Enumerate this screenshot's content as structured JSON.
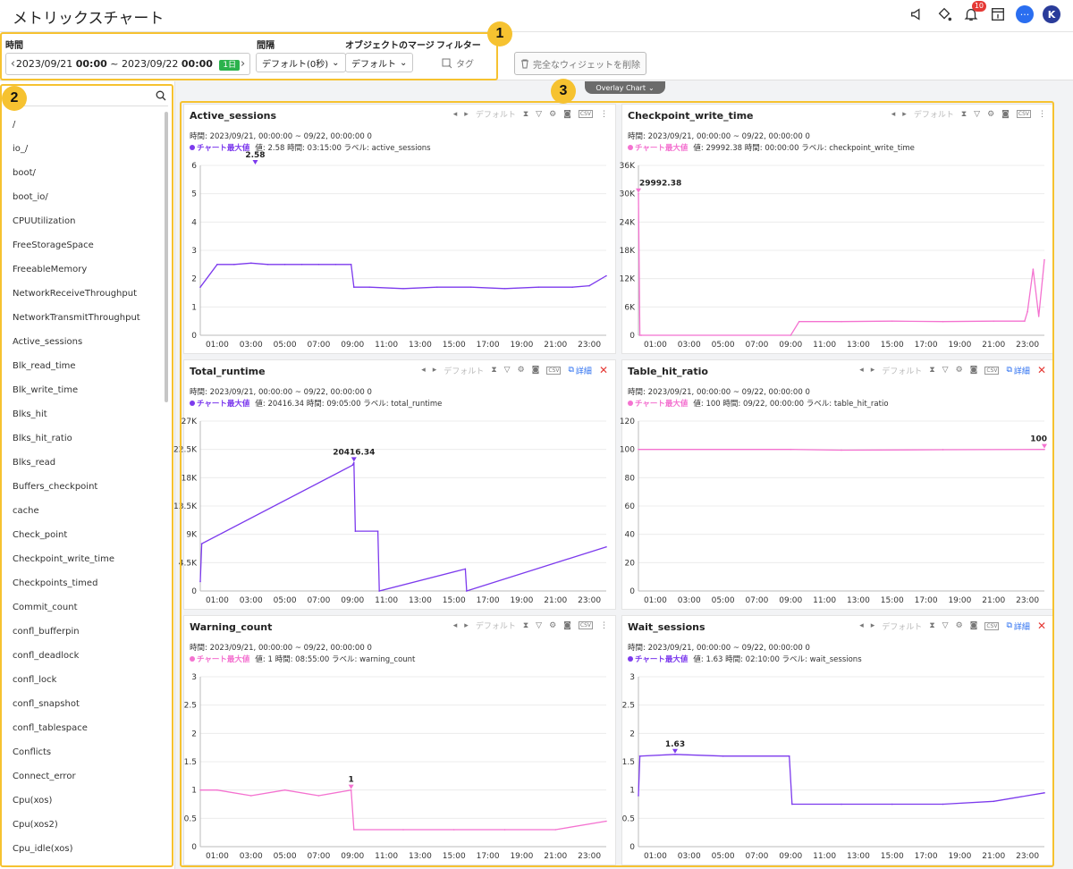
{
  "header": {
    "title": "メトリックスチャート",
    "notification_count": "10",
    "user_initial": "K",
    "chat_glyph": "···"
  },
  "filters": {
    "time_label": "時間",
    "date_from": "2023/09/21",
    "time_from": "00:00",
    "separator": "~",
    "date_to": "2023/09/22",
    "time_to": "00:00",
    "range_badge": "1日",
    "interval_label": "間隔",
    "interval_value": "デフォルト(0秒)",
    "merge_label": "オブジェクトのマージ",
    "merge_value": "デフォルト",
    "filter_label": "フィルター",
    "tag_label": "タグ",
    "delete_label": "完全なウィジェットを削除"
  },
  "callouts": [
    "1",
    "2",
    "3"
  ],
  "sidebar": {
    "items": [
      "/",
      "io_/",
      "boot/",
      "boot_io/",
      "CPUUtilization",
      "FreeStorageSpace",
      "FreeableMemory",
      "NetworkReceiveThroughput",
      "NetworkTransmitThroughput",
      "Active_sessions",
      "Blk_read_time",
      "Blk_write_time",
      "Blks_hit",
      "Blks_hit_ratio",
      "Blks_read",
      "Buffers_checkpoint",
      "cache",
      "Check_point",
      "Checkpoint_write_time",
      "Checkpoints_timed",
      "Commit_count",
      "confl_bufferpin",
      "confl_deadlock",
      "confl_lock",
      "confl_snapshot",
      "confl_tablespace",
      "Conflicts",
      "Connect_error",
      "Cpu(xos)",
      "Cpu(xos2)",
      "Cpu_idle(xos)"
    ]
  },
  "overlay_chart_label": "Overlay Chart",
  "panel_common": {
    "default_label": "デフォルト",
    "detail_label": "詳細",
    "max_label": "チャート最大値",
    "time_range": "時間: 2023/09/21, 00:00:00 ~ 09/22, 00:00:00   0",
    "colors": {
      "purple": "#7c3aed",
      "pink": "#f472d0"
    }
  },
  "panels": [
    {
      "title": "Active_sessions",
      "detail": false,
      "info": "値: 2.58   時間: 03:15:00   ラベル: active_sessions"
    },
    {
      "title": "Checkpoint_write_time",
      "detail": false,
      "info": "値: 29992.38   時間: 00:00:00   ラベル: checkpoint_write_time"
    },
    {
      "title": "Total_runtime",
      "detail": true,
      "info": "値: 20416.34   時間: 09:05:00   ラベル: total_runtime"
    },
    {
      "title": "Table_hit_ratio",
      "detail": true,
      "info": "値: 100   時間: 09/22, 00:00:00   ラベル: table_hit_ratio"
    },
    {
      "title": "Warning_count",
      "detail": false,
      "info": "値: 1   時間: 08:55:00   ラベル: warning_count"
    },
    {
      "title": "Wait_sessions",
      "detail": true,
      "info": "値: 1.63   時間: 02:10:00   ラベル: wait_sessions"
    }
  ],
  "chart_data": [
    {
      "type": "line",
      "title": "Active_sessions",
      "color": "purple",
      "x": [
        "00:00",
        "01:00",
        "02:00",
        "03:00",
        "04:00",
        "05:00",
        "06:00",
        "07:00",
        "08:00",
        "08:55",
        "09:05",
        "10:00",
        "12:00",
        "14:00",
        "16:00",
        "18:00",
        "20:00",
        "22:00",
        "23:00",
        "24:00"
      ],
      "y": [
        1.7,
        2.5,
        2.5,
        2.55,
        2.5,
        2.5,
        2.5,
        2.5,
        2.5,
        2.5,
        1.7,
        1.7,
        1.65,
        1.7,
        1.7,
        1.65,
        1.7,
        1.7,
        1.75,
        2.1
      ],
      "xticks": [
        "01:00",
        "03:00",
        "05:00",
        "07:00",
        "09:00",
        "11:00",
        "13:00",
        "15:00",
        "17:00",
        "19:00",
        "21:00",
        "23:00"
      ],
      "yticks": [
        "0",
        "1",
        "2",
        "3",
        "4",
        "5",
        "6"
      ],
      "ylim": [
        0,
        6
      ],
      "max_label": "2.58",
      "max_time": "03:15"
    },
    {
      "type": "line",
      "title": "Checkpoint_write_time",
      "color": "pink",
      "x": [
        "00:00",
        "00:05",
        "00:10",
        "09:00",
        "09:30",
        "12:00",
        "15:00",
        "18:00",
        "21:00",
        "22:50",
        "23:00",
        "23:20",
        "23:40",
        "24:00"
      ],
      "y": [
        29992.38,
        0,
        0,
        0,
        2900,
        2900,
        3000,
        2900,
        3000,
        3000,
        5000,
        14000,
        4000,
        16000
      ],
      "xticks": [
        "01:00",
        "03:00",
        "05:00",
        "07:00",
        "09:00",
        "11:00",
        "13:00",
        "15:00",
        "17:00",
        "19:00",
        "21:00",
        "23:00"
      ],
      "yticks": [
        "0",
        "6K",
        "12K",
        "18K",
        "24K",
        "30K",
        "36K"
      ],
      "ylim": [
        0,
        36000
      ],
      "max_label": "29992.38",
      "max_time": "00:00"
    },
    {
      "type": "line",
      "title": "Total_runtime",
      "color": "purple",
      "x": [
        "00:00",
        "00:05",
        "09:00",
        "09:05",
        "09:10",
        "10:30",
        "10:35",
        "15:40",
        "15:45",
        "24:00"
      ],
      "y": [
        1500,
        7500,
        20000,
        20416.34,
        9500,
        9500,
        0,
        3500,
        0,
        7000
      ],
      "xticks": [
        "01:00",
        "03:00",
        "05:00",
        "07:00",
        "09:00",
        "11:00",
        "13:00",
        "15:00",
        "17:00",
        "19:00",
        "21:00",
        "23:00"
      ],
      "yticks": [
        "0",
        "4.5K",
        "9K",
        "13.5K",
        "18K",
        "22.5K",
        "27K"
      ],
      "ylim": [
        0,
        27000
      ],
      "max_label": "20416.34",
      "max_time": "09:05"
    },
    {
      "type": "line",
      "title": "Table_hit_ratio",
      "color": "pink",
      "x": [
        "00:00",
        "09:00",
        "12:00",
        "18:00",
        "24:00"
      ],
      "y": [
        100,
        100,
        99.5,
        99.8,
        100
      ],
      "xticks": [
        "01:00",
        "03:00",
        "05:00",
        "07:00",
        "09:00",
        "11:00",
        "13:00",
        "15:00",
        "17:00",
        "19:00",
        "21:00",
        "23:00"
      ],
      "yticks": [
        "0",
        "20",
        "40",
        "60",
        "80",
        "100",
        "120"
      ],
      "ylim": [
        0,
        120
      ],
      "max_label": "100",
      "max_time": "24:00"
    },
    {
      "type": "line",
      "title": "Warning_count",
      "color": "pink",
      "x": [
        "00:00",
        "01:00",
        "03:00",
        "05:00",
        "07:00",
        "08:55",
        "09:05",
        "12:00",
        "15:00",
        "18:00",
        "21:00",
        "24:00"
      ],
      "y": [
        1,
        1,
        0.9,
        1,
        0.9,
        1,
        0.3,
        0.3,
        0.3,
        0.3,
        0.3,
        0.45
      ],
      "xticks": [
        "01:00",
        "03:00",
        "05:00",
        "07:00",
        "09:00",
        "11:00",
        "13:00",
        "15:00",
        "17:00",
        "19:00",
        "21:00",
        "23:00"
      ],
      "yticks": [
        "0",
        "0.5",
        "1",
        "1.5",
        "2",
        "2.5",
        "3"
      ],
      "ylim": [
        0,
        3
      ],
      "max_label": "1",
      "max_time": "08:55"
    },
    {
      "type": "line",
      "title": "Wait_sessions",
      "color": "purple",
      "x": [
        "00:00",
        "00:05",
        "02:10",
        "05:00",
        "08:55",
        "09:05",
        "12:00",
        "15:00",
        "18:00",
        "21:00",
        "24:00"
      ],
      "y": [
        0.9,
        1.6,
        1.63,
        1.6,
        1.6,
        0.75,
        0.75,
        0.75,
        0.75,
        0.8,
        0.95
      ],
      "xticks": [
        "01:00",
        "03:00",
        "05:00",
        "07:00",
        "09:00",
        "11:00",
        "13:00",
        "15:00",
        "17:00",
        "19:00",
        "21:00",
        "23:00"
      ],
      "yticks": [
        "0",
        "0.5",
        "1",
        "1.5",
        "2",
        "2.5",
        "3"
      ],
      "ylim": [
        0,
        3
      ],
      "max_label": "1.63",
      "max_time": "02:10"
    }
  ]
}
